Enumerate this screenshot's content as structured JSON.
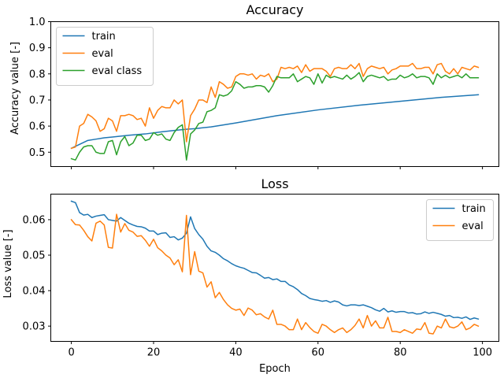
{
  "chart_data": [
    {
      "type": "line",
      "title": "Accuracy",
      "xlabel": "",
      "ylabel": "Accuracy value [-]",
      "xlim": [
        -5,
        104
      ],
      "ylim": [
        0.445,
        1.0
      ],
      "xticks": [
        0,
        20,
        40,
        60,
        80,
        100
      ],
      "xtick_labels_visible": false,
      "yticks": [
        0.5,
        0.6,
        0.7,
        0.8,
        0.9,
        1.0
      ],
      "ytick_labels": [
        "0.5",
        "0.6",
        "0.7",
        "0.8",
        "0.9",
        "1.0"
      ],
      "grid": false,
      "legend_position": "top-left",
      "series": [
        {
          "name": "train",
          "color": "#1f77b4",
          "x": [
            0,
            2,
            4,
            6,
            8,
            10,
            14,
            18,
            22,
            26,
            28,
            30,
            34,
            40,
            50,
            60,
            70,
            80,
            90,
            99
          ],
          "y": [
            0.515,
            0.53,
            0.545,
            0.55,
            0.555,
            0.558,
            0.565,
            0.57,
            0.578,
            0.585,
            0.588,
            0.59,
            0.597,
            0.612,
            0.64,
            0.662,
            0.68,
            0.695,
            0.71,
            0.72
          ]
        },
        {
          "name": "eval",
          "color": "#ff7f0e",
          "x": [
            0,
            1,
            2,
            3,
            4,
            5,
            6,
            7,
            8,
            9,
            10,
            11,
            12,
            13,
            14,
            15,
            16,
            17,
            18,
            19,
            20,
            21,
            22,
            23,
            24,
            25,
            26,
            27,
            28,
            29,
            30,
            31,
            32,
            33,
            34,
            35,
            36,
            37,
            38,
            39,
            40,
            41,
            42,
            43,
            44,
            45,
            46,
            47,
            48,
            49,
            50,
            51,
            52,
            53,
            54,
            55,
            56,
            57,
            58,
            59,
            60,
            61,
            62,
            63,
            64,
            65,
            66,
            67,
            68,
            69,
            70,
            71,
            72,
            73,
            74,
            75,
            76,
            77,
            78,
            79,
            80,
            81,
            82,
            83,
            84,
            85,
            86,
            87,
            88,
            89,
            90,
            91,
            92,
            93,
            94,
            95,
            96,
            97,
            98,
            99
          ],
          "y": [
            0.515,
            0.52,
            0.6,
            0.61,
            0.645,
            0.635,
            0.62,
            0.58,
            0.59,
            0.63,
            0.62,
            0.58,
            0.64,
            0.64,
            0.645,
            0.64,
            0.625,
            0.63,
            0.6,
            0.67,
            0.63,
            0.66,
            0.675,
            0.67,
            0.67,
            0.7,
            0.685,
            0.7,
            0.54,
            0.64,
            0.665,
            0.7,
            0.7,
            0.69,
            0.75,
            0.71,
            0.77,
            0.76,
            0.745,
            0.75,
            0.79,
            0.8,
            0.8,
            0.795,
            0.8,
            0.78,
            0.795,
            0.79,
            0.8,
            0.77,
            0.78,
            0.825,
            0.82,
            0.825,
            0.82,
            0.83,
            0.805,
            0.835,
            0.81,
            0.82,
            0.82,
            0.82,
            0.81,
            0.79,
            0.82,
            0.825,
            0.82,
            0.82,
            0.835,
            0.82,
            0.84,
            0.79,
            0.82,
            0.83,
            0.825,
            0.82,
            0.825,
            0.8,
            0.815,
            0.82,
            0.83,
            0.83,
            0.83,
            0.84,
            0.82,
            0.82,
            0.825,
            0.825,
            0.8,
            0.835,
            0.84,
            0.81,
            0.8,
            0.82,
            0.8,
            0.825,
            0.82,
            0.815,
            0.83,
            0.825
          ]
        },
        {
          "name": "eval class",
          "color": "#2ca02c",
          "x": [
            0,
            1,
            2,
            3,
            4,
            5,
            6,
            7,
            8,
            9,
            10,
            11,
            12,
            13,
            14,
            15,
            16,
            17,
            18,
            19,
            20,
            21,
            22,
            23,
            24,
            25,
            26,
            27,
            28,
            29,
            30,
            31,
            32,
            33,
            34,
            35,
            36,
            37,
            38,
            39,
            40,
            41,
            42,
            43,
            44,
            45,
            46,
            47,
            48,
            49,
            50,
            51,
            52,
            53,
            54,
            55,
            56,
            57,
            58,
            59,
            60,
            61,
            62,
            63,
            64,
            65,
            66,
            67,
            68,
            69,
            70,
            71,
            72,
            73,
            74,
            75,
            76,
            77,
            78,
            79,
            80,
            81,
            82,
            83,
            84,
            85,
            86,
            87,
            88,
            89,
            90,
            91,
            92,
            93,
            94,
            95,
            96,
            97,
            98,
            99
          ],
          "y": [
            0.475,
            0.47,
            0.5,
            0.52,
            0.525,
            0.525,
            0.5,
            0.495,
            0.495,
            0.54,
            0.545,
            0.49,
            0.54,
            0.56,
            0.525,
            0.535,
            0.565,
            0.565,
            0.545,
            0.55,
            0.575,
            0.565,
            0.57,
            0.55,
            0.545,
            0.575,
            0.595,
            0.605,
            0.47,
            0.57,
            0.585,
            0.61,
            0.615,
            0.655,
            0.66,
            0.67,
            0.72,
            0.715,
            0.72,
            0.735,
            0.77,
            0.76,
            0.745,
            0.75,
            0.75,
            0.755,
            0.755,
            0.75,
            0.73,
            0.755,
            0.79,
            0.785,
            0.785,
            0.785,
            0.8,
            0.77,
            0.78,
            0.79,
            0.785,
            0.76,
            0.8,
            0.765,
            0.795,
            0.785,
            0.79,
            0.785,
            0.78,
            0.795,
            0.78,
            0.79,
            0.805,
            0.77,
            0.79,
            0.795,
            0.79,
            0.785,
            0.79,
            0.775,
            0.78,
            0.78,
            0.795,
            0.785,
            0.79,
            0.8,
            0.785,
            0.79,
            0.79,
            0.785,
            0.76,
            0.8,
            0.785,
            0.795,
            0.785,
            0.79,
            0.795,
            0.785,
            0.8,
            0.785,
            0.785,
            0.785
          ]
        }
      ]
    },
    {
      "type": "line",
      "title": "Loss",
      "xlabel": "Epoch",
      "ylabel": "Loss value [-]",
      "xlim": [
        -5,
        104
      ],
      "ylim": [
        0.0257,
        0.0672
      ],
      "xticks": [
        0,
        20,
        40,
        60,
        80,
        100
      ],
      "xtick_labels": [
        "0",
        "20",
        "40",
        "60",
        "80",
        "100"
      ],
      "yticks": [
        0.03,
        0.04,
        0.05,
        0.06
      ],
      "ytick_labels": [
        "0.03",
        "0.04",
        "0.05",
        "0.06"
      ],
      "grid": false,
      "legend_position": "top-right",
      "series": [
        {
          "name": "train",
          "color": "#1f77b4",
          "x": [
            0,
            1,
            2,
            3,
            4,
            5,
            6,
            7,
            8,
            9,
            10,
            11,
            12,
            13,
            14,
            15,
            16,
            17,
            18,
            19,
            20,
            21,
            22,
            23,
            24,
            25,
            26,
            27,
            28,
            29,
            30,
            31,
            32,
            33,
            34,
            35,
            36,
            37,
            38,
            39,
            40,
            41,
            42,
            43,
            44,
            45,
            46,
            47,
            48,
            49,
            50,
            51,
            52,
            53,
            54,
            55,
            56,
            57,
            58,
            59,
            60,
            61,
            62,
            63,
            64,
            65,
            66,
            67,
            68,
            69,
            70,
            71,
            72,
            73,
            74,
            75,
            76,
            77,
            78,
            79,
            80,
            81,
            82,
            83,
            84,
            85,
            86,
            87,
            88,
            89,
            90,
            91,
            92,
            93,
            94,
            95,
            96,
            97,
            98,
            99
          ],
          "y": [
            0.0652,
            0.0648,
            0.062,
            0.0613,
            0.0615,
            0.0606,
            0.061,
            0.0612,
            0.0614,
            0.06,
            0.0598,
            0.0596,
            0.0606,
            0.0598,
            0.059,
            0.0585,
            0.0581,
            0.058,
            0.0576,
            0.0568,
            0.0568,
            0.0558,
            0.0562,
            0.0563,
            0.055,
            0.0552,
            0.0543,
            0.0548,
            0.0562,
            0.0608,
            0.0575,
            0.0558,
            0.0545,
            0.0525,
            0.0512,
            0.0508,
            0.05,
            0.049,
            0.0484,
            0.0476,
            0.047,
            0.0466,
            0.0463,
            0.0457,
            0.0451,
            0.045,
            0.0443,
            0.0435,
            0.0437,
            0.0431,
            0.0433,
            0.0426,
            0.0426,
            0.0416,
            0.0411,
            0.0403,
            0.0392,
            0.0386,
            0.0378,
            0.0375,
            0.0373,
            0.037,
            0.0372,
            0.0367,
            0.0371,
            0.0368,
            0.036,
            0.0357,
            0.036,
            0.036,
            0.0358,
            0.036,
            0.0356,
            0.0352,
            0.0346,
            0.0342,
            0.035,
            0.034,
            0.0343,
            0.0339,
            0.0341,
            0.0341,
            0.0337,
            0.0338,
            0.0334,
            0.0335,
            0.034,
            0.0336,
            0.0339,
            0.0336,
            0.0333,
            0.0328,
            0.033,
            0.0324,
            0.0325,
            0.0322,
            0.0326,
            0.0319,
            0.0323,
            0.032
          ]
        },
        {
          "name": "eval",
          "color": "#ff7f0e",
          "x": [
            0,
            1,
            2,
            3,
            4,
            5,
            6,
            7,
            8,
            9,
            10,
            11,
            12,
            13,
            14,
            15,
            16,
            17,
            18,
            19,
            20,
            21,
            22,
            23,
            24,
            25,
            26,
            27,
            28,
            29,
            30,
            31,
            32,
            33,
            34,
            35,
            36,
            37,
            38,
            39,
            40,
            41,
            42,
            43,
            44,
            45,
            46,
            47,
            48,
            49,
            50,
            51,
            52,
            53,
            54,
            55,
            56,
            57,
            58,
            59,
            60,
            61,
            62,
            63,
            64,
            65,
            66,
            67,
            68,
            69,
            70,
            71,
            72,
            73,
            74,
            75,
            76,
            77,
            78,
            79,
            80,
            81,
            82,
            83,
            84,
            85,
            86,
            87,
            88,
            89,
            90,
            91,
            92,
            93,
            94,
            95,
            96,
            97,
            98,
            99
          ],
          "y": [
            0.06,
            0.0586,
            0.0585,
            0.057,
            0.0552,
            0.054,
            0.059,
            0.0596,
            0.0585,
            0.0522,
            0.052,
            0.0615,
            0.0565,
            0.0589,
            0.057,
            0.0565,
            0.0553,
            0.0555,
            0.0542,
            0.0525,
            0.0545,
            0.0521,
            0.0512,
            0.05,
            0.0492,
            0.0473,
            0.0487,
            0.0453,
            0.0612,
            0.0445,
            0.051,
            0.0455,
            0.045,
            0.041,
            0.0425,
            0.038,
            0.0395,
            0.0375,
            0.036,
            0.035,
            0.0345,
            0.0348,
            0.033,
            0.0351,
            0.0345,
            0.0332,
            0.0335,
            0.0326,
            0.032,
            0.0345,
            0.0305,
            0.0305,
            0.03,
            0.029,
            0.029,
            0.032,
            0.029,
            0.031,
            0.0296,
            0.0285,
            0.028,
            0.0305,
            0.03,
            0.029,
            0.0282,
            0.029,
            0.0295,
            0.0282,
            0.029,
            0.0302,
            0.032,
            0.0295,
            0.033,
            0.03,
            0.0315,
            0.0295,
            0.0295,
            0.0325,
            0.0285,
            0.0285,
            0.0282,
            0.029,
            0.0285,
            0.028,
            0.0292,
            0.029,
            0.031,
            0.028,
            0.0278,
            0.03,
            0.0295,
            0.032,
            0.0298,
            0.0295,
            0.03,
            0.0312,
            0.029,
            0.0295,
            0.0305,
            0.03
          ]
        }
      ]
    }
  ]
}
